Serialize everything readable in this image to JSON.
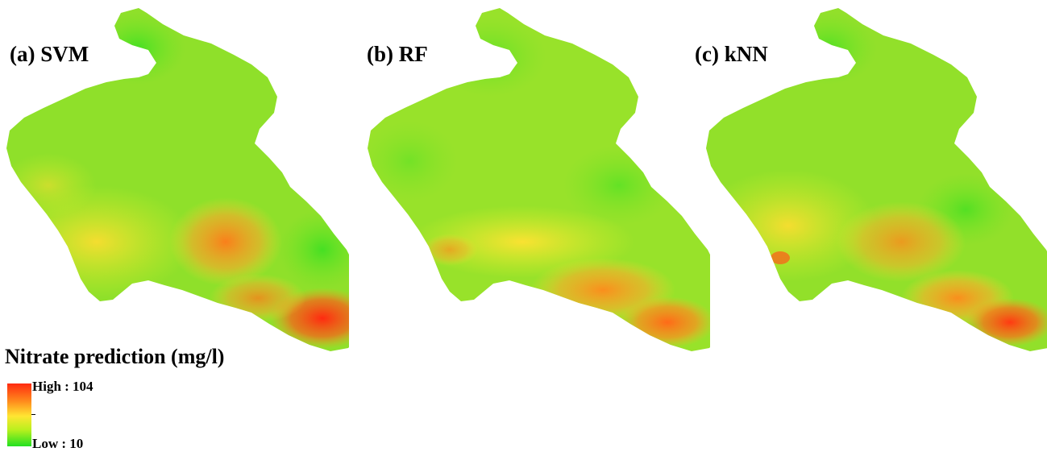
{
  "panels": [
    {
      "label": "(a)  SVM",
      "model": "SVM"
    },
    {
      "label": "(b) RF",
      "model": "RF"
    },
    {
      "label": "(c) kNN",
      "model": "kNN"
    }
  ],
  "legend": {
    "title": "Nitrate prediction (mg/l)",
    "high_label": "High : 104",
    "low_label": "Low : 10",
    "high_value": 104,
    "low_value": 10,
    "colors": {
      "high": "#ff2a10",
      "mid_high": "#ff8a1c",
      "mid": "#ffe632",
      "mid_low": "#b8f01e",
      "low": "#22e020"
    }
  }
}
